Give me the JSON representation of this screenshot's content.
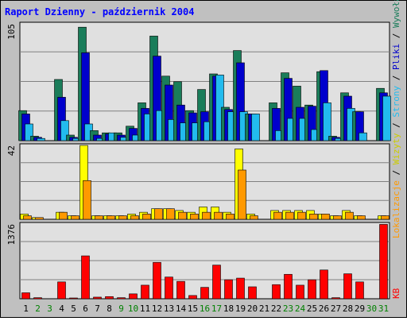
{
  "title": "Raport Dzienny -  październik 2004",
  "colors": {
    "background": "#c0c0c0",
    "plot_bg": "#e0e0e0",
    "border": "#000000",
    "grid": "#808080",
    "title": "#0000ff",
    "weekday": "#000000",
    "weekend": "#008000",
    "wywolania": "#1a7d5a",
    "pliki": "#0000cc",
    "strony": "#22bbee",
    "wizyty": "#ffff00",
    "lokalizacje": "#ff9900",
    "kb": "#ff0000"
  },
  "chart_data": [
    {
      "type": "bar",
      "panel": "hits",
      "max_label": "105",
      "ylim": [
        0,
        105
      ],
      "legend": {
        "wywolania": "Wywołania",
        "pliki": "Pliki",
        "strony": "Strony"
      },
      "categories": [
        "1",
        "2",
        "3",
        "4",
        "5",
        "6",
        "7",
        "8",
        "9",
        "10",
        "11",
        "12",
        "13",
        "14",
        "15",
        "16",
        "17",
        "18",
        "19",
        "20",
        "21",
        "22",
        "23",
        "24",
        "25",
        "26",
        "27",
        "28",
        "29",
        "30",
        "31"
      ],
      "weekend_days": [
        "2",
        "3",
        "9",
        "10",
        "16",
        "17",
        "23",
        "24",
        "30",
        "31"
      ],
      "series": [
        {
          "name": "Wywołania",
          "key": "wywolania",
          "values": [
            27,
            4,
            0,
            55,
            5,
            102,
            9,
            7,
            7,
            13,
            34,
            94,
            58,
            53,
            27,
            46,
            60,
            30,
            81,
            24,
            0,
            34,
            61,
            49,
            32,
            62,
            4,
            43,
            26,
            0,
            47
          ]
        },
        {
          "name": "Pliki",
          "key": "pliki",
          "values": [
            24,
            3,
            0,
            39,
            3,
            79,
            5,
            6,
            5,
            11,
            29,
            76,
            50,
            32,
            25,
            26,
            58,
            28,
            70,
            24,
            0,
            29,
            56,
            30,
            31,
            63,
            3,
            40,
            26,
            0,
            43
          ]
        },
        {
          "name": "Strony",
          "key": "strony",
          "values": [
            15,
            2,
            0,
            18,
            2,
            15,
            2,
            7,
            3,
            5,
            24,
            27,
            19,
            16,
            16,
            17,
            59,
            26,
            26,
            24,
            0,
            9,
            20,
            20,
            10,
            34,
            2,
            29,
            7,
            0,
            40
          ]
        }
      ]
    },
    {
      "type": "bar",
      "panel": "visits",
      "max_label": "42",
      "ylim": [
        0,
        42
      ],
      "legend": {
        "wizyty": "Wizyty",
        "lokalizacje": "Lokalizacje"
      },
      "categories": [
        "1",
        "2",
        "3",
        "4",
        "5",
        "6",
        "7",
        "8",
        "9",
        "10",
        "11",
        "12",
        "13",
        "14",
        "15",
        "16",
        "17",
        "18",
        "19",
        "20",
        "21",
        "22",
        "23",
        "24",
        "25",
        "26",
        "27",
        "28",
        "29",
        "30",
        "31"
      ],
      "series": [
        {
          "name": "Wizyty",
          "key": "wizyty",
          "values": [
            3,
            1,
            0,
            4,
            2,
            42,
            2,
            2,
            2,
            3,
            4,
            6,
            6,
            5,
            4,
            7,
            7,
            4,
            40,
            3,
            0,
            5,
            5,
            5,
            5,
            3,
            2,
            5,
            2,
            0,
            2
          ]
        },
        {
          "name": "Lokalizacje",
          "key": "lokalizacje",
          "values": [
            2,
            1,
            0,
            4,
            2,
            22,
            2,
            2,
            2,
            2,
            3,
            6,
            6,
            4,
            3,
            4,
            4,
            3,
            28,
            2,
            0,
            4,
            4,
            4,
            3,
            3,
            2,
            4,
            2,
            0,
            2
          ]
        }
      ]
    },
    {
      "type": "bar",
      "panel": "kb",
      "max_label": "1376",
      "ylim": [
        0,
        1376
      ],
      "legend": {
        "kb": "KB"
      },
      "categories": [
        "1",
        "2",
        "3",
        "4",
        "5",
        "6",
        "7",
        "8",
        "9",
        "10",
        "11",
        "12",
        "13",
        "14",
        "15",
        "16",
        "17",
        "18",
        "19",
        "20",
        "21",
        "22",
        "23",
        "24",
        "25",
        "26",
        "27",
        "28",
        "29",
        "30",
        "31"
      ],
      "series": [
        {
          "name": "KB",
          "key": "kb",
          "values": [
            110,
            20,
            0,
            310,
            10,
            790,
            30,
            40,
            20,
            90,
            250,
            670,
            400,
            320,
            60,
            210,
            620,
            350,
            380,
            220,
            0,
            260,
            450,
            250,
            350,
            530,
            20,
            460,
            310,
            0,
            1370
          ]
        }
      ]
    }
  ]
}
